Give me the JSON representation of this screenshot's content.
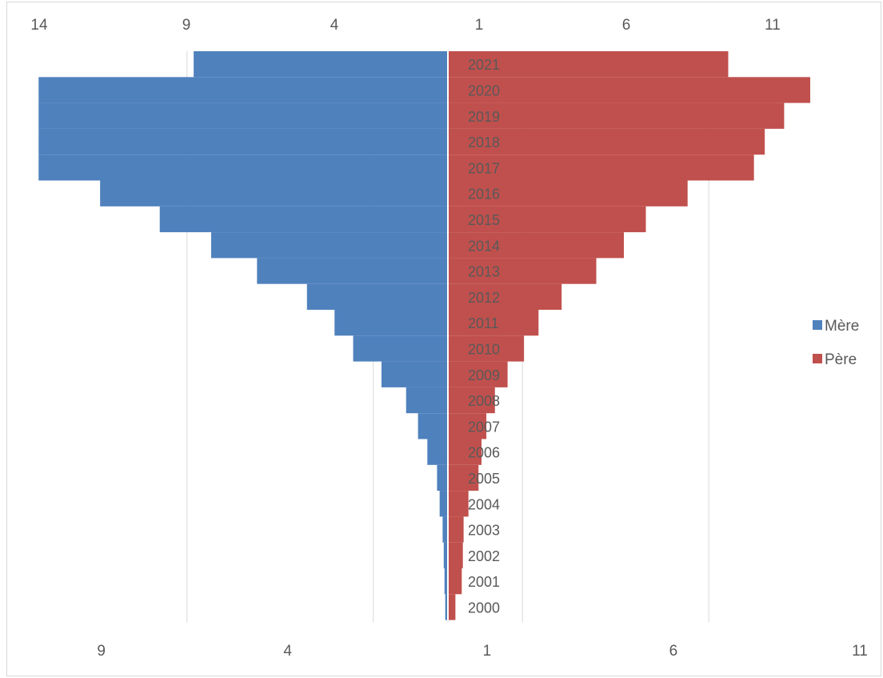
{
  "chart_data": {
    "type": "bar",
    "orientation": "horizontal",
    "layout": "diverging-pyramid",
    "categories": [
      "2000",
      "2001",
      "2002",
      "2003",
      "2004",
      "2005",
      "2006",
      "2007",
      "2008",
      "2009",
      "2010",
      "2011",
      "2012",
      "2013",
      "2014",
      "2015",
      "2016",
      "2017",
      "2018",
      "2019",
      "2020",
      "2021"
    ],
    "series": [
      {
        "name": "Mère",
        "color": "#4f81bd",
        "side": "left",
        "values": [
          0.05,
          0.07,
          0.09,
          0.12,
          0.2,
          0.27,
          0.53,
          0.78,
          1.1,
          1.76,
          2.52,
          3.02,
          3.76,
          5.1,
          6.33,
          7.71,
          9.31,
          10.96,
          10.96,
          10.96,
          10.96,
          6.8
        ]
      },
      {
        "name": "Père",
        "color": "#c0504d",
        "side": "right",
        "values": [
          0.18,
          0.35,
          0.38,
          0.4,
          0.53,
          0.8,
          0.88,
          1.01,
          1.24,
          1.58,
          2.02,
          2.41,
          3.03,
          3.96,
          4.7,
          5.29,
          6.41,
          8.19,
          8.48,
          9.0,
          9.7,
          7.5
        ]
      }
    ],
    "axis_top_ticks": [
      "14",
      "9",
      "4",
      "1",
      "6",
      "11"
    ],
    "axis_bottom_ticks": [
      "9",
      "4",
      "1",
      "6",
      "11"
    ],
    "legend_position": "right",
    "gridlines": true
  }
}
